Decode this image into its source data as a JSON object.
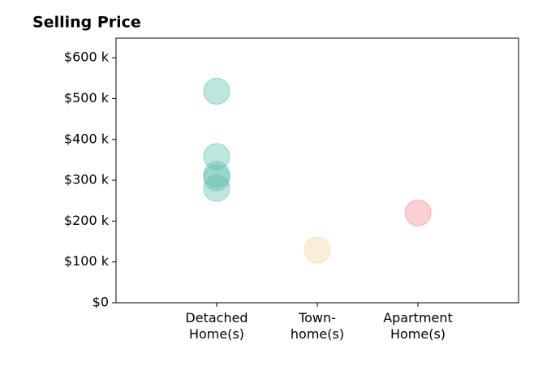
{
  "chart_data": {
    "type": "scatter",
    "title": "Selling Price",
    "categories": [
      "Detached\nHome(s)",
      "Town-\nhome(s)",
      "Apartment\nHome(s)"
    ],
    "values": [
      [
        518000,
        358000,
        314000,
        306000,
        280000
      ],
      [
        129000
      ],
      [
        220000
      ]
    ],
    "colors": [
      "#5fbfb0",
      "#f0d49a",
      "#f08a92"
    ],
    "ylim": [
      0,
      648000
    ],
    "yticks": [
      {
        "value": 0,
        "label": "$0"
      },
      {
        "value": 100000,
        "label": "$100 k"
      },
      {
        "value": 200000,
        "label": "$200 k"
      },
      {
        "value": 300000,
        "label": "$300 k"
      },
      {
        "value": 400000,
        "label": "$400 k"
      },
      {
        "value": 500000,
        "label": "$500 k"
      },
      {
        "value": 600000,
        "label": "$600 k"
      }
    ],
    "grid": false
  }
}
